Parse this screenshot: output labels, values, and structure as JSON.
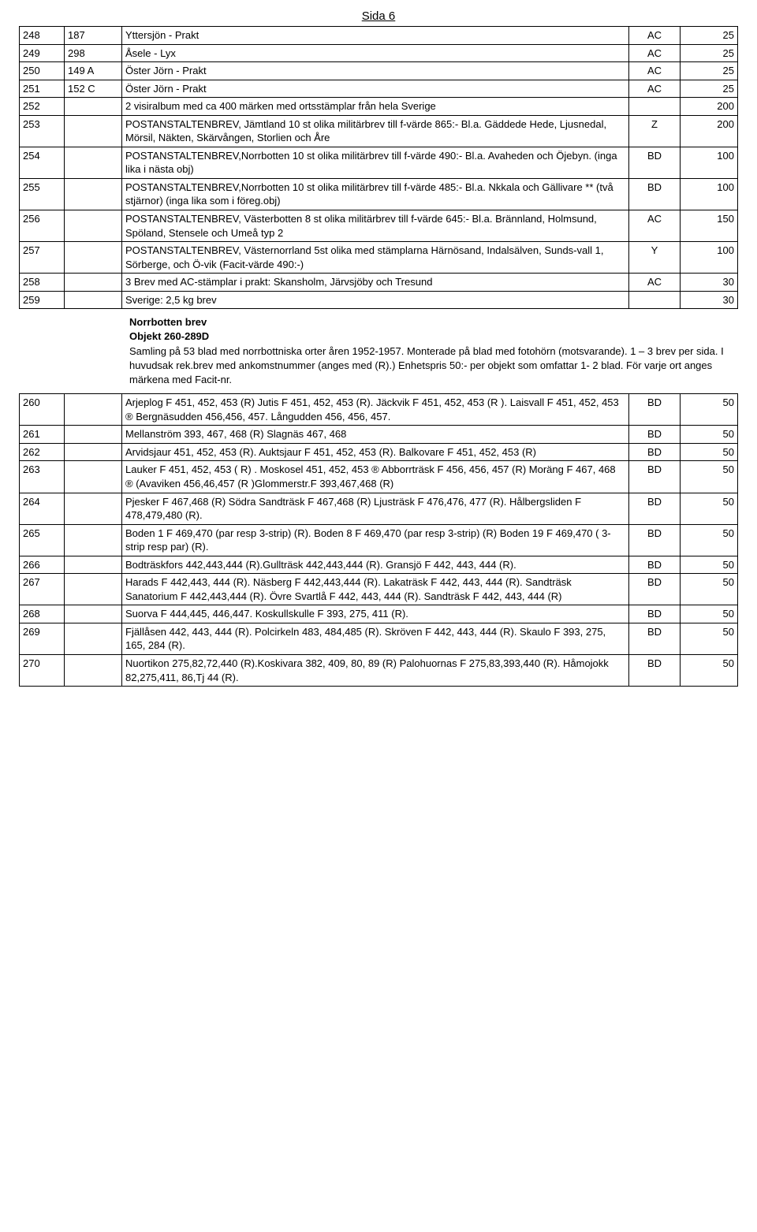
{
  "page_title": "Sida 6",
  "rows_top": [
    {
      "lot": "248",
      "sub": "187",
      "desc": "Yttersjön - Prakt",
      "region": "AC",
      "price": "25"
    },
    {
      "lot": "249",
      "sub": "298",
      "desc": "Åsele - Lyx",
      "region": "AC",
      "price": "25"
    },
    {
      "lot": "250",
      "sub": "149 A",
      "desc": "Öster Jörn - Prakt",
      "region": "AC",
      "price": "25"
    },
    {
      "lot": "251",
      "sub": "152 C",
      "desc": "Öster Jörn - Prakt",
      "region": "AC",
      "price": "25"
    },
    {
      "lot": "252",
      "sub": "",
      "desc": "2 visiralbum med ca 400 märken med ortsstämplar från hela Sverige",
      "region": "",
      "price": "200"
    },
    {
      "lot": "253",
      "sub": "",
      "desc": "POSTANSTALTENBREV, Jämtland 10 st olika militärbrev till f-värde 865:- Bl.a. Gäddede Hede, Ljusnedal, Mörsil, Näkten, Skärvången, Storlien och Åre",
      "region": "Z",
      "price": "200"
    },
    {
      "lot": "254",
      "sub": "",
      "desc": "POSTANSTALTENBREV,Norrbotten 10 st olika militärbrev till f-värde 490:- Bl.a. Avaheden och Öjebyn. (inga lika i nästa obj)",
      "region": "BD",
      "price": "100"
    },
    {
      "lot": "255",
      "sub": "",
      "desc": "POSTANSTALTENBREV,Norrbotten 10 st olika militärbrev till f-värde 485:- Bl.a. Nkkala och Gällivare ** (två stjärnor) (inga lika som i föreg.obj)",
      "region": "BD",
      "price": "100"
    },
    {
      "lot": "256",
      "sub": "",
      "desc": "POSTANSTALTENBREV, Västerbotten 8 st olika militärbrev till f-värde 645:- Bl.a. Brännland, Holmsund, Spöland, Stensele och Umeå typ 2",
      "region": "AC",
      "price": "150"
    },
    {
      "lot": "257",
      "sub": "",
      "desc": "POSTANSTALTENBREV, Västernorrland 5st olika med stämplarna Härnösand, Indalsälven, Sunds-vall 1, Sörberge, och Ö-vik (Facit-värde 490:-)",
      "region": "Y",
      "price": "100"
    },
    {
      "lot": "258",
      "sub": "",
      "desc": "3 Brev med AC-stämplar i prakt: Skansholm, Järvsjöby och Tresund",
      "region": "AC",
      "price": "30"
    },
    {
      "lot": "259",
      "sub": "",
      "desc": "Sverige: 2,5 kg brev",
      "region": "",
      "price": "30"
    }
  ],
  "intro": {
    "title": "Norrbotten brev\nObjekt 260-289D",
    "body": "Samling på 53 blad med norrbottniska orter åren 1952-1957. Monterade på blad med fotohörn (motsvarande). 1 – 3 brev per sida. I huvudsak rek.brev med ankomstnummer (anges med (R).) Enhetspris 50:- per objekt som omfattar 1- 2 blad. För varje ort anges märkena med Facit-nr."
  },
  "rows_bottom": [
    {
      "lot": "260",
      "desc": "Arjeplog F 451, 452, 453 (R) Jutis F 451, 452, 453 (R). Jäckvik F 451, 452, 453 (R ). Laisvall F 451, 452, 453 ® Bergnäsudden  456,456, 457. Långudden 456, 456, 457.",
      "region": "BD",
      "price": "50"
    },
    {
      "lot": "261",
      "desc": "Mellanström  393, 467, 468 (R) Slagnäs  467, 468",
      "region": "BD",
      "price": "50"
    },
    {
      "lot": "262",
      "desc": "Arvidsjaur  451, 452, 453 (R). Auktsjaur F 451, 452, 453 (R). Balkovare F 451, 452, 453 (R)",
      "region": "BD",
      "price": "50"
    },
    {
      "lot": "263",
      "desc": "Lauker F 451, 452, 453 ( R) . Moskosel 451, 452, 453 ® Abborrträsk F 456, 456, 457 (R) Moräng F 467, 468 ® (Avaviken 456,46,457 (R )Glommerstr.F 393,467,468 (R)",
      "region": "BD",
      "price": "50"
    },
    {
      "lot": "264",
      "desc": "Pjesker F 467,468 (R) Södra Sandträsk F 467,468  (R) Ljusträsk F 476,476, 477 (R). Hålbergsliden F 478,479,480  (R).",
      "region": "BD",
      "price": "50"
    },
    {
      "lot": "265",
      "desc": "Boden 1 F 469,470 (par resp 3-strip) (R). Boden 8 F 469,470 (par resp 3-strip)  (R) Boden 19  F 469,470 ( 3-strip resp par) (R).",
      "region": "BD",
      "price": "50"
    },
    {
      "lot": "266",
      "desc": "Bodträskfors  442,443,444 (R).Gullträsk 442,443,444 (R). Gransjö F 442, 443, 444 (R).",
      "region": "BD",
      "price": "50"
    },
    {
      "lot": "267",
      "desc": "Harads F 442,443, 444 (R). Näsberg F 442,443,444 (R). Lakaträsk F 442, 443, 444  (R). Sandträsk Sanatorium F 442,443,444 (R). Övre Svartlå F 442, 443, 444 (R). Sandträsk F 442, 443, 444 (R)",
      "region": "BD",
      "price": "50"
    },
    {
      "lot": "268",
      "desc": "Suorva F 444,445, 446,447. Koskullskulle F 393, 275, 411 (R).",
      "region": "BD",
      "price": "50"
    },
    {
      "lot": "269",
      "desc": "Fjällåsen 442, 443, 444 (R). Polcirkeln  483, 484,485 (R). Skröven F 442, 443, 444 (R). Skaulo F 393, 275, 165, 284 (R).",
      "region": "BD",
      "price": "50"
    },
    {
      "lot": "270",
      "desc": "Nuortikon 275,82,72,440 (R).Koskivara 382, 409, 80, 89 (R) Palohuornas F 275,83,393,440 (R). Håmojokk  82,275,411, 86,Tj 44 (R).",
      "region": "BD",
      "price": "50"
    }
  ]
}
